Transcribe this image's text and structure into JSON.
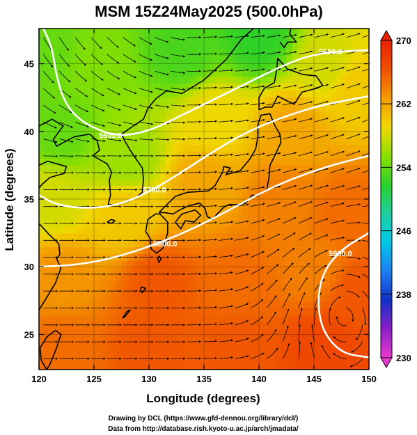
{
  "chart_data": {
    "type": "heatmap",
    "title": "MSM 15Z24May2025 (500.0hPa)",
    "xlabel": "Longitude (degrees)",
    "ylabel": "Latitude  (degrees)",
    "xlim": [
      120,
      150
    ],
    "ylim": [
      22.4,
      47.6
    ],
    "x_ticks": [
      120,
      125,
      130,
      135,
      140,
      145,
      150
    ],
    "x_tick_labels": [
      "120",
      "125",
      "130",
      "135",
      "140",
      "145",
      "150"
    ],
    "y_ticks": [
      25,
      30,
      35,
      40,
      45
    ],
    "y_tick_labels": [
      "25",
      "30",
      "35",
      "40",
      "45"
    ],
    "colorbar": {
      "min": 230,
      "max": 270,
      "ticks": [
        230,
        238,
        246,
        254,
        262,
        270
      ],
      "tick_labels": [
        "230",
        "238",
        "246",
        "254",
        "262",
        "270"
      ],
      "colors": [
        "#e83ad0",
        "#8a1fc8",
        "#1230c8",
        "#1c80f0",
        "#00c8e8",
        "#1ed0a0",
        "#2ad02a",
        "#8ce000",
        "#f0d800",
        "#f49a00",
        "#f05000",
        "#e82000"
      ]
    },
    "grid": true,
    "field_samples": [
      {
        "lon": 121,
        "lat": 46,
        "value": 254
      },
      {
        "lon": 125,
        "lat": 45,
        "value": 255
      },
      {
        "lon": 133,
        "lat": 46,
        "value": 253
      },
      {
        "lon": 140,
        "lat": 47,
        "value": 252
      },
      {
        "lon": 146,
        "lat": 45,
        "value": 258
      },
      {
        "lon": 149,
        "lat": 43,
        "value": 260
      },
      {
        "lon": 122,
        "lat": 40,
        "value": 254
      },
      {
        "lon": 128,
        "lat": 38,
        "value": 256
      },
      {
        "lon": 136,
        "lat": 41,
        "value": 259
      },
      {
        "lon": 143,
        "lat": 40,
        "value": 262
      },
      {
        "lon": 121,
        "lat": 35,
        "value": 258
      },
      {
        "lon": 128,
        "lat": 34,
        "value": 260
      },
      {
        "lon": 135,
        "lat": 36,
        "value": 262
      },
      {
        "lon": 142,
        "lat": 35,
        "value": 264
      },
      {
        "lon": 148,
        "lat": 34,
        "value": 265
      },
      {
        "lon": 122,
        "lat": 29,
        "value": 263
      },
      {
        "lon": 131,
        "lat": 29,
        "value": 266
      },
      {
        "lon": 138,
        "lat": 29,
        "value": 265
      },
      {
        "lon": 145,
        "lat": 30,
        "value": 264
      },
      {
        "lon": 149,
        "lat": 28,
        "value": 266
      },
      {
        "lon": 122,
        "lat": 24,
        "value": 265
      },
      {
        "lon": 130,
        "lat": 24,
        "value": 266
      },
      {
        "lon": 138,
        "lat": 24,
        "value": 266
      },
      {
        "lon": 146,
        "lat": 24,
        "value": 267
      }
    ],
    "contours": [
      {
        "label": "5600.0",
        "points": [
          [
            120.4,
            47.6
          ],
          [
            121.2,
            46.2
          ],
          [
            121.6,
            44.0
          ],
          [
            122.4,
            42.0
          ],
          [
            124.0,
            40.6
          ],
          [
            127.0,
            39.6
          ],
          [
            130.0,
            40.0
          ],
          [
            133.0,
            41.2
          ],
          [
            136.0,
            42.4
          ],
          [
            139.0,
            43.6
          ],
          [
            142.0,
            44.8
          ],
          [
            144.5,
            45.6
          ],
          [
            147.0,
            45.9
          ],
          [
            150.0,
            46.0
          ]
        ]
      },
      {
        "label": "5700.0",
        "points": [
          [
            120.0,
            35.3
          ],
          [
            121.5,
            34.6
          ],
          [
            124.0,
            34.3
          ],
          [
            127.0,
            34.5
          ],
          [
            130.0,
            35.5
          ],
          [
            133.0,
            37.0
          ],
          [
            136.0,
            38.6
          ],
          [
            139.0,
            40.0
          ],
          [
            142.0,
            41.0
          ],
          [
            145.0,
            41.8
          ],
          [
            148.0,
            42.3
          ],
          [
            150.0,
            42.6
          ]
        ]
      },
      {
        "label": "5800.0",
        "points": [
          [
            120.0,
            30.0
          ],
          [
            123.0,
            30.1
          ],
          [
            126.0,
            30.5
          ],
          [
            129.0,
            31.2
          ],
          [
            132.0,
            32.1
          ],
          [
            135.0,
            33.2
          ],
          [
            138.0,
            34.5
          ],
          [
            141.0,
            35.8
          ],
          [
            144.0,
            36.8
          ],
          [
            147.0,
            37.6
          ],
          [
            150.0,
            38.2
          ]
        ]
      },
      {
        "label": "5900.0",
        "points": [
          [
            150.0,
            32.5
          ],
          [
            147.5,
            31.3
          ],
          [
            145.8,
            29.6
          ],
          [
            145.3,
            27.4
          ],
          [
            145.8,
            25.2
          ],
          [
            147.5,
            23.6
          ],
          [
            150.0,
            23.3
          ]
        ]
      }
    ],
    "contour_label_positions": [
      {
        "label": "5600.0",
        "lon": 146.5,
        "lat": 45.9
      },
      {
        "label": "5600.0",
        "lon": 126.5,
        "lat": 39.7
      },
      {
        "label": "5700.0",
        "lon": 130.5,
        "lat": 35.7
      },
      {
        "label": "5800.0",
        "lon": 131.5,
        "lat": 31.7
      },
      {
        "label": "5900.0",
        "lon": 147.4,
        "lat": 31.0
      }
    ],
    "wind_field_description": "streamlines: westerly flow across the domain, NW flow in the north-west, anticyclonic circulation in the south-east"
  },
  "credits": {
    "line1": "Drawing by DCL (https://www.gfd-dennou.org/library/dcl/)",
    "line2": "Data from http://database.rish.kyoto-u.ac.jp/arch/jmadata/"
  }
}
